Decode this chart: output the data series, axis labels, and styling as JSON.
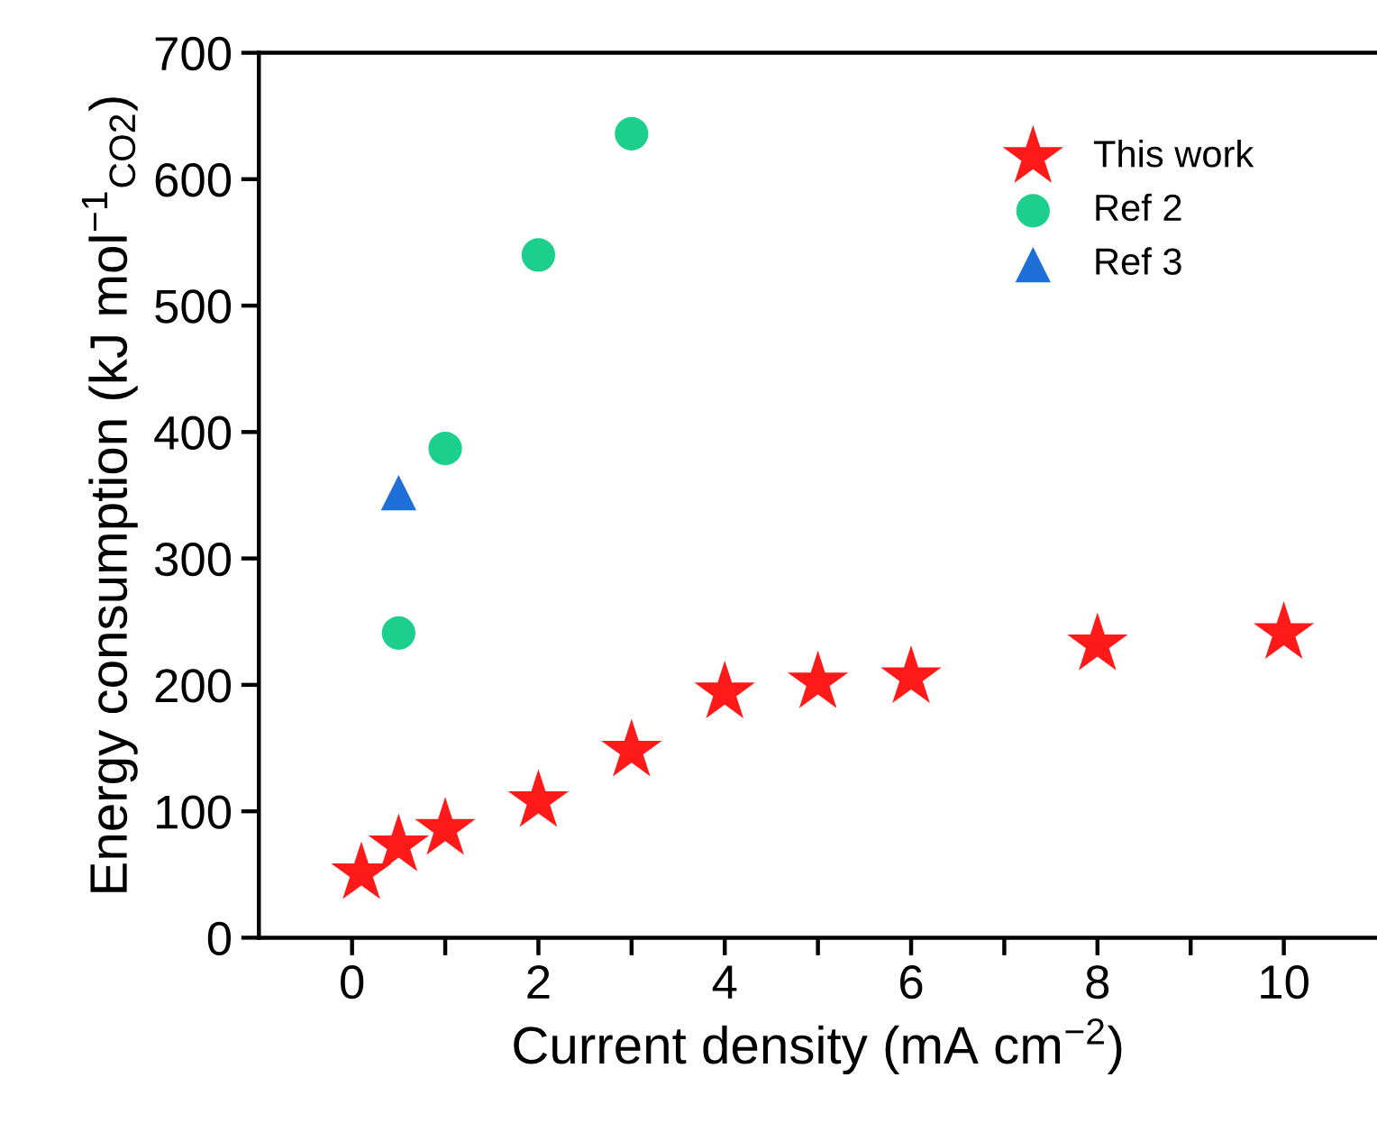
{
  "chart_data": {
    "type": "scatter",
    "xlabel": "Current density (mA cm$^{−2}$)",
    "ylabel": "Energy consumption (kJ mol$^{−1}$$_{CO2}$)",
    "series": [
      {
        "name": "This work",
        "color": "#ff1a1a",
        "marker": "star",
        "x": [
          0.1,
          0.5,
          1,
          2,
          3,
          4,
          5,
          6,
          8,
          10
        ],
        "values": [
          51,
          73,
          86,
          108,
          148,
          194,
          202,
          206,
          232,
          241
        ]
      },
      {
        "name": "Ref 2",
        "color": "#1dcf8c",
        "marker": "circle",
        "x": [
          0.5,
          1,
          2,
          3
        ],
        "values": [
          241,
          387,
          540,
          636
        ]
      },
      {
        "name": "Ref 3",
        "color": "#1f6fd8",
        "marker": "triangle",
        "x": [
          0.5
        ],
        "values": [
          352
        ]
      }
    ],
    "xlim": [
      -1,
      11
    ],
    "xticks": [
      0,
      {
        "value": 1,
        "label": null
      },
      2,
      {
        "value": 3,
        "label": null
      },
      4,
      {
        "value": 5,
        "label": null
      },
      6,
      {
        "value": 7,
        "label": null
      },
      8,
      {
        "value": 9,
        "label": null
      },
      10
    ],
    "ylim": [
      0,
      700
    ],
    "yticks": [
      0,
      100,
      200,
      300,
      400,
      500,
      600,
      700
    ],
    "legend": "top right"
  }
}
